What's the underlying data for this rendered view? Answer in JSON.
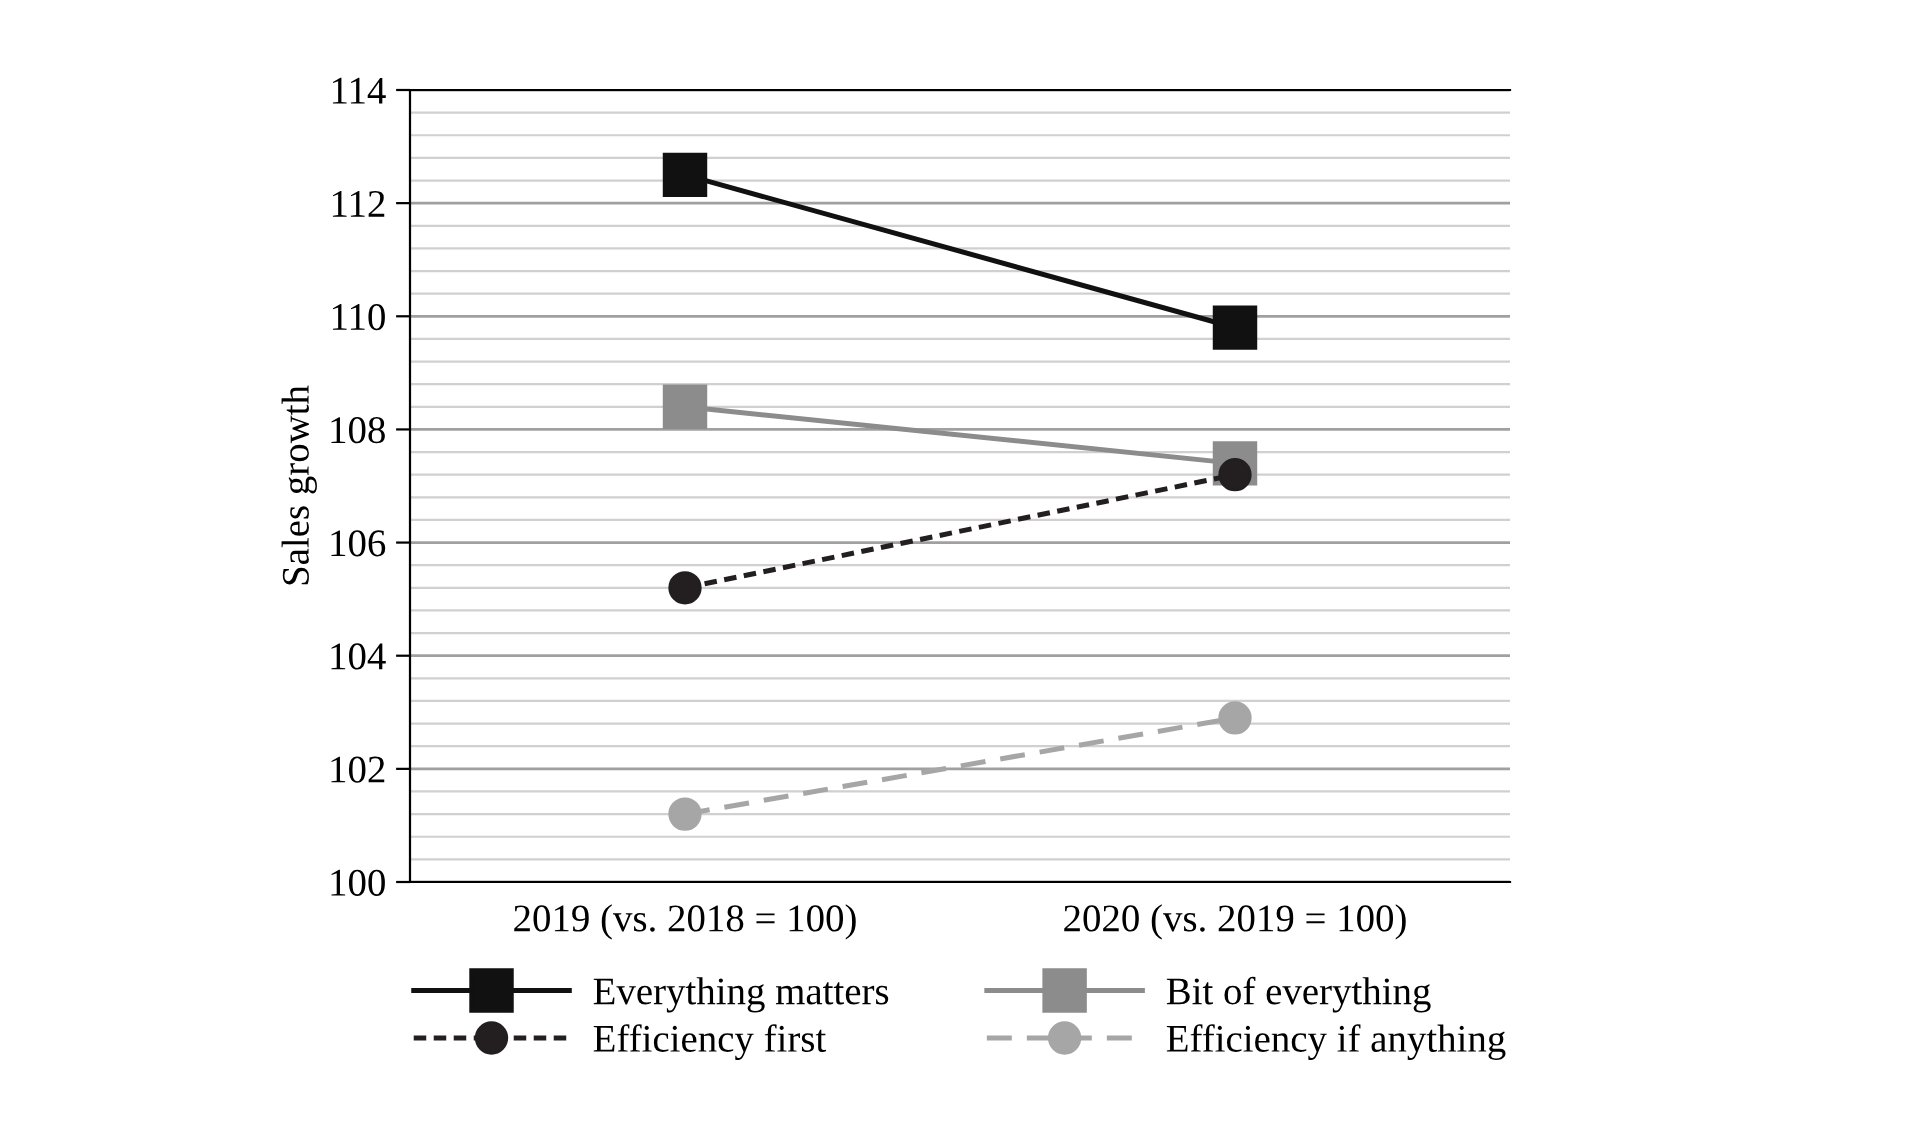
{
  "chart_data": {
    "type": "line",
    "ylabel": "Sales growth",
    "categories": [
      "2019 (vs. 2018 = 100)",
      "2020 (vs. 2019 = 100)"
    ],
    "series": [
      {
        "name": "Everything matters",
        "color": "#111111",
        "values": [
          112.5,
          109.8
        ],
        "marker": "square",
        "line_style": "solid"
      },
      {
        "name": "Bit of everything",
        "color": "#8c8c8c",
        "values": [
          108.4,
          107.4
        ],
        "marker": "square",
        "line_style": "solid"
      },
      {
        "name": "Efficiency first",
        "color": "#231f20",
        "values": [
          105.2,
          107.2
        ],
        "marker": "circle",
        "line_style": "dotted"
      },
      {
        "name": "Efficiency if anything",
        "color": "#a6a6a6",
        "values": [
          101.2,
          102.9
        ],
        "marker": "circle",
        "line_style": "dashed"
      }
    ],
    "ylim": [
      100,
      114
    ],
    "yticks": [
      100,
      102,
      104,
      106,
      108,
      110,
      112,
      114
    ],
    "grid": "y",
    "legend": "bottom"
  }
}
